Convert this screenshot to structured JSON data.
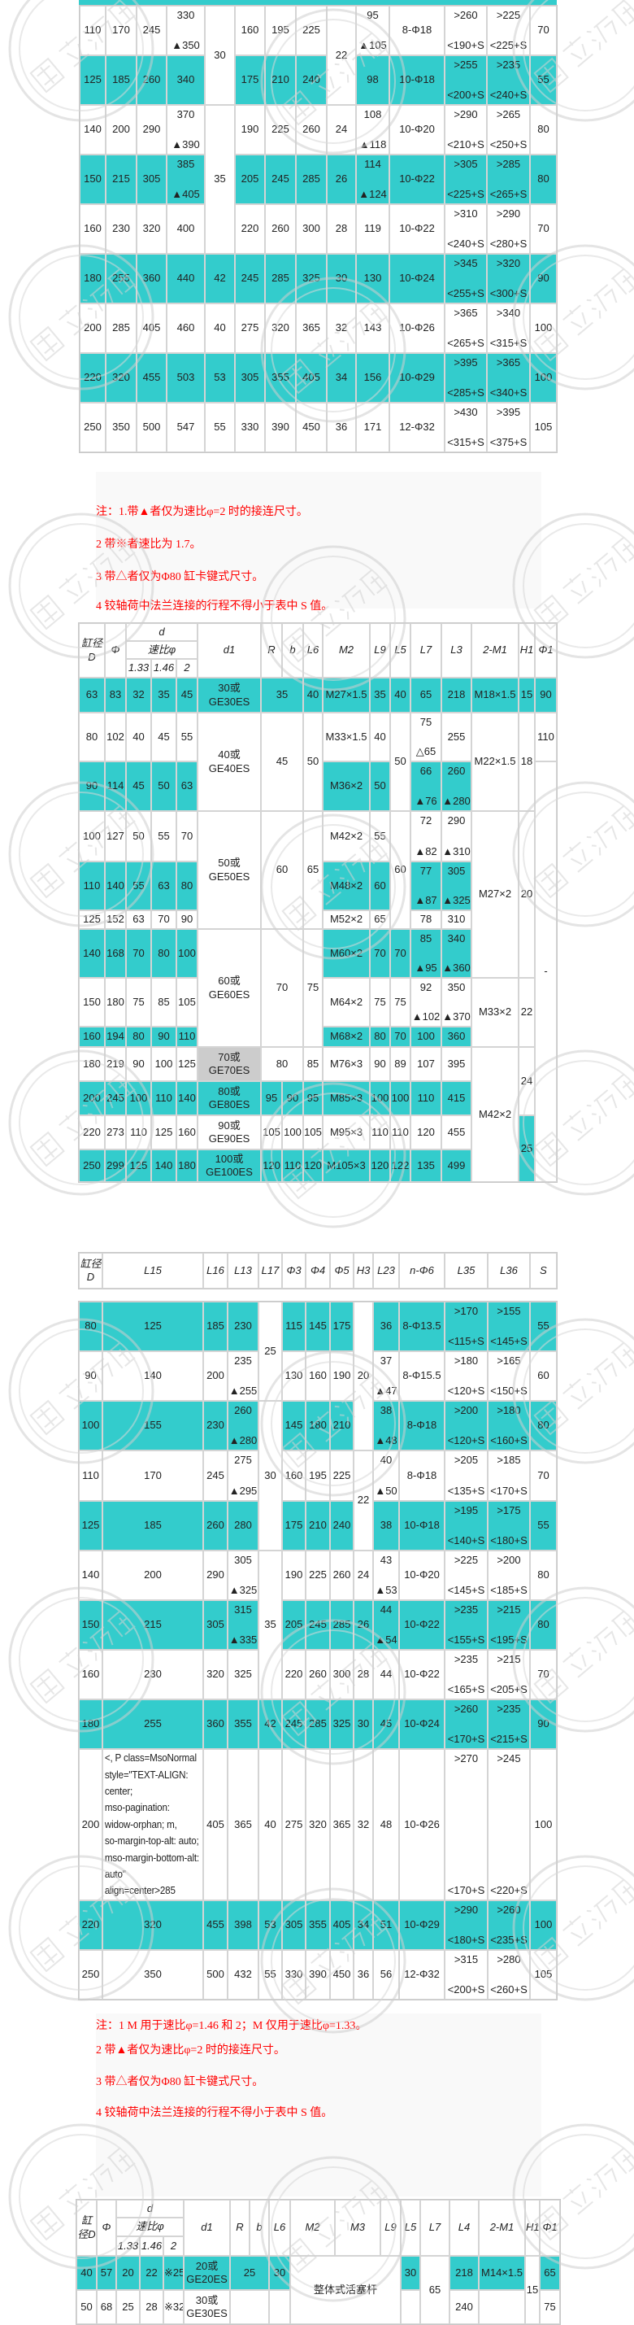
{
  "watermark": "国立液压",
  "colors": {
    "highlight": "#33cccc",
    "note_text": "#ff0000",
    "gray_cell": "#cccccc"
  },
  "t1": {
    "rows": [
      {
        "hl": false,
        "c": [
          "110",
          "170",
          "245",
          [
            "330",
            "▲350"
          ],
          {
            "t": "30",
            "rs": 2
          },
          "160",
          "195",
          "225",
          {
            "t": "22",
            "rs": 2
          },
          [
            "95",
            "▲105"
          ],
          "8-Φ18",
          [
            ">260",
            "<190+S"
          ],
          [
            ">225",
            "<225+S"
          ],
          "70"
        ]
      },
      {
        "hl": true,
        "c": [
          "125",
          "185",
          "260",
          "340",
          "175",
          "210",
          "240",
          "98",
          "10-Φ18",
          [
            ">255",
            "<200+S"
          ],
          [
            ">235",
            "<240+S"
          ],
          "55"
        ]
      },
      {
        "hl": false,
        "c": [
          "140",
          "200",
          "290",
          [
            "370",
            "▲390"
          ],
          {
            "t": "35",
            "rs": 3
          },
          "190",
          "225",
          "260",
          "24",
          [
            "108",
            "▲118"
          ],
          "10-Φ20",
          [
            ">290",
            "<210+S"
          ],
          [
            ">265",
            "<250+S"
          ],
          "80"
        ]
      },
      {
        "hl": true,
        "c": [
          "150",
          "215",
          "305",
          [
            "385",
            "▲405"
          ],
          "205",
          "245",
          "285",
          "26",
          [
            "114",
            "▲124"
          ],
          "10-Φ22",
          [
            ">305",
            "<225+S"
          ],
          [
            ">285",
            "<265+S"
          ],
          "80"
        ]
      },
      {
        "hl": false,
        "c": [
          "160",
          "230",
          "320",
          "400",
          "220",
          "260",
          "300",
          "28",
          "119",
          "10-Φ22",
          [
            ">310",
            "<240+S"
          ],
          [
            ">290",
            "<280+S"
          ],
          "70"
        ]
      },
      {
        "hl": true,
        "c": [
          "180",
          "255",
          "360",
          "440",
          "42",
          "245",
          "285",
          "325",
          "30",
          "130",
          "10-Φ24",
          [
            ">345",
            "<255+S"
          ],
          [
            ">320",
            "<300+S"
          ],
          "90"
        ]
      },
      {
        "hl": false,
        "c": [
          "200",
          "285",
          "405",
          "460",
          "40",
          "275",
          "320",
          "365",
          "32",
          "143",
          "10-Φ26",
          [
            ">365",
            "<265+S"
          ],
          [
            ">340",
            "<315+S"
          ],
          "100"
        ]
      },
      {
        "hl": true,
        "c": [
          "220",
          "320",
          "455",
          "503",
          "53",
          "305",
          "355",
          "405",
          "34",
          "156",
          "10-Φ29",
          [
            ">395",
            "<285+S"
          ],
          [
            ">365",
            "<340+S"
          ],
          "100"
        ]
      },
      {
        "hl": false,
        "c": [
          "250",
          "350",
          "500",
          "547",
          "55",
          "330",
          "390",
          "450",
          "36",
          "171",
          "12-Φ32",
          [
            ">430",
            "<315+S"
          ],
          [
            ">395",
            "<375+S"
          ],
          "105"
        ]
      }
    ]
  },
  "notes1": [
    "注：1.带▲者仅为速比φ=2 时的接连尺寸。",
    "2  带※者速比为 1.7。",
    "3  带△者仅为Φ80 缸卡键式尺寸。",
    "4  铰轴荷中法兰连接的行程不得小于表中 S 值。"
  ],
  "t2": {
    "head": [
      {
        "c": [
          {
            "t": "缸径\nD",
            "rs": 3
          },
          {
            "t": "Φ",
            "rs": 3
          },
          {
            "t": "d",
            "cs": 3
          },
          {
            "t": "d1",
            "rs": 3
          },
          {
            "t": "R",
            "rs": 3
          },
          {
            "t": "b",
            "rs": 3
          },
          {
            "t": "L6",
            "rs": 3
          },
          {
            "t": "M2",
            "rs": 3
          },
          {
            "t": "L9",
            "rs": 3
          },
          {
            "t": "L5",
            "rs": 3
          },
          {
            "t": "L7",
            "rs": 3
          },
          {
            "t": "L3",
            "rs": 3
          },
          {
            "t": "2-M1",
            "rs": 3
          },
          {
            "t": "H1",
            "rs": 3
          },
          {
            "t": "Φ1",
            "rs": 3
          }
        ]
      },
      {
        "c": [
          {
            "t": "速比φ",
            "cs": 3
          }
        ]
      },
      {
        "c": [
          "1.33",
          "1.46",
          "2"
        ]
      }
    ],
    "rows": [
      {
        "hl": true,
        "c": [
          "63",
          "83",
          "32",
          "35",
          "45",
          "30或\nGE30ES",
          {
            "t": "35",
            "cs": 2
          },
          "40",
          "M27×1.5",
          "35",
          "40",
          "65",
          "218",
          "M18×1.5",
          "15",
          "90"
        ]
      },
      {
        "hl": false,
        "c": [
          "80",
          "102",
          "40",
          "45",
          "55",
          {
            "t": "40或\nGE40ES",
            "rs": 2
          },
          {
            "t": "45",
            "cs": 2,
            "rs": 2
          },
          {
            "t": "50",
            "rs": 2
          },
          "M33×1.5",
          "40",
          {
            "t": "50",
            "rs": 2
          },
          [
            "75",
            "△65"
          ],
          "255",
          {
            "t": "M22×1.5",
            "rs": 2
          },
          {
            "t": "18",
            "rs": 2
          },
          "110"
        ]
      },
      {
        "hl": true,
        "c": [
          "90",
          "114",
          "45",
          "50",
          "63",
          "M36×2",
          "50",
          [
            "66",
            "▲76"
          ],
          [
            "260",
            "▲280"
          ],
          {
            "t": "-",
            "rs": 11
          }
        ]
      },
      {
        "hl": false,
        "c": [
          "100",
          "127",
          "50",
          "55",
          "70",
          {
            "t": "50或\nGE50ES",
            "rs": 3
          },
          {
            "t": "60",
            "cs": 2,
            "rs": 3
          },
          {
            "t": "65",
            "rs": 3
          },
          "M42×2",
          "55",
          {
            "t": "60",
            "rs": 3
          },
          [
            "72",
            "▲82"
          ],
          [
            "290",
            "▲310"
          ],
          {
            "t": "M27×2",
            "rs": 4
          },
          {
            "t": "20",
            "rs": 4
          }
        ]
      },
      {
        "hl": true,
        "c": [
          "110",
          "140",
          "55",
          "63",
          "80",
          "M48×2",
          "60",
          [
            "77",
            "▲87"
          ],
          [
            "305",
            "▲325"
          ]
        ]
      },
      {
        "hl": false,
        "c": [
          "125",
          "152",
          "63",
          "70",
          "90",
          "M52×2",
          "65",
          "78",
          "310"
        ]
      },
      {
        "hl": true,
        "c": [
          "140",
          "168",
          "70",
          "80",
          "100",
          {
            "t": "60或\nGE60ES",
            "rs": 3
          },
          {
            "t": "70",
            "cs": 2,
            "rs": 3
          },
          {
            "t": "75",
            "rs": 3
          },
          "M60×2",
          "70",
          "70",
          [
            "85",
            "▲95"
          ],
          [
            "340",
            "▲360"
          ]
        ]
      },
      {
        "hl": false,
        "c": [
          "150",
          "180",
          "75",
          "85",
          "105",
          "M64×2",
          "75",
          "75",
          [
            "92",
            "▲102"
          ],
          [
            "350",
            "▲370"
          ],
          {
            "t": "M33×2",
            "rs": 2
          },
          {
            "t": "22",
            "rs": 2
          }
        ]
      },
      {
        "hl": true,
        "c": [
          "160",
          "194",
          "80",
          "90",
          "110",
          "M68×2",
          "80",
          "70",
          "100",
          "360"
        ]
      },
      {
        "hl": false,
        "c": [
          "180",
          "219",
          "90",
          "100",
          "125",
          {
            "t": "70或\nGE70ES",
            "bg": "#cccccc"
          },
          {
            "t": "80",
            "cs": 2
          },
          "85",
          "M76×3",
          "90",
          "89",
          "107",
          "395",
          {
            "t": "M42×2",
            "rs": 4
          },
          {
            "t": "24",
            "rs": 2
          }
        ]
      },
      {
        "hl": true,
        "c": [
          "200",
          "245",
          "100",
          "110",
          "140",
          "80或\nGE80ES",
          "95",
          "90",
          "95",
          "M85×3",
          "100",
          "100",
          "110",
          "415"
        ]
      },
      {
        "hl": false,
        "c": [
          "220",
          "273",
          "110",
          "125",
          "160",
          "90或\nGE90ES",
          "105",
          "100",
          "105",
          "M95×3",
          "110",
          "110",
          "120",
          "455",
          {
            "t": "25",
            "rs": 2,
            "hl": true
          }
        ]
      },
      {
        "hl": true,
        "c": [
          "250",
          "299",
          "125",
          "140",
          "180",
          "100或\nGE100ES",
          "120",
          "110",
          "120",
          "M105×3",
          "120",
          "122",
          "135",
          "499"
        ]
      }
    ]
  },
  "t3head": {
    "head": [
      {
        "c": [
          "缸径\nD",
          "L15",
          "L16",
          "L13",
          "L17",
          "Φ3",
          "Φ4",
          "Φ5",
          "H3",
          "L23",
          "n-Φ6",
          "L35",
          "L36",
          "S"
        ]
      }
    ]
  },
  "t3": {
    "rows": [
      {
        "hl": true,
        "c": [
          "80",
          "125",
          "185",
          "230",
          {
            "t": "25",
            "rs": 2
          },
          "115",
          "145",
          "175",
          {
            "t": "20",
            "rs": 3
          },
          "36",
          "8-Φ13.5",
          [
            ">170",
            "<115+S"
          ],
          [
            ">155",
            "<145+S"
          ],
          "55"
        ]
      },
      {
        "hl": false,
        "c": [
          "90",
          "140",
          "200",
          [
            "235",
            "▲255"
          ],
          "130",
          "160",
          "190",
          [
            "37",
            "▲47"
          ],
          "8-Φ15.5",
          [
            ">180",
            "<120+S"
          ],
          [
            ">165",
            "<150+S"
          ],
          "60"
        ]
      },
      {
        "hl": true,
        "c": [
          "100",
          "155",
          "230",
          [
            "260",
            "▲280"
          ],
          {
            "t": "30",
            "rs": 3
          },
          "145",
          "180",
          "210",
          [
            "38",
            "▲48"
          ],
          "8-Φ18",
          [
            ">200",
            "<120+S"
          ],
          [
            ">180",
            "<160+S"
          ],
          "80"
        ]
      },
      {
        "hl": false,
        "c": [
          "110",
          "170",
          "245",
          [
            "275",
            "▲295"
          ],
          "160",
          "195",
          "225",
          {
            "t": "22",
            "rs": 2
          },
          [
            "40",
            "▲50"
          ],
          "8-Φ18",
          [
            ">205",
            "<135+S"
          ],
          [
            ">185",
            "<170+S"
          ],
          "70"
        ]
      },
      {
        "hl": true,
        "c": [
          "125",
          "185",
          "260",
          "280",
          "175",
          "210",
          "240",
          "38",
          "10-Φ18",
          [
            ">195",
            "<140+S"
          ],
          [
            ">175",
            "<180+S"
          ],
          "55"
        ]
      },
      {
        "hl": false,
        "c": [
          "140",
          "200",
          "290",
          [
            "305",
            "▲325"
          ],
          {
            "t": "35",
            "rs": 3
          },
          "190",
          "225",
          "260",
          "24",
          [
            "43",
            "▲53"
          ],
          "10-Φ20",
          [
            ">225",
            "<145+S"
          ],
          [
            ">200",
            "<185+S"
          ],
          "80"
        ]
      },
      {
        "hl": true,
        "c": [
          "150",
          "215",
          "305",
          [
            "315",
            "▲335"
          ],
          "205",
          "245",
          "285",
          "26",
          [
            "44",
            "▲54"
          ],
          "10-Φ22",
          [
            ">235",
            "<155+S"
          ],
          [
            ">215",
            "<195+S"
          ],
          "80"
        ]
      },
      {
        "hl": false,
        "c": [
          "160",
          "230",
          "320",
          "325",
          "220",
          "260",
          "300",
          "28",
          "44",
          "10-Φ22",
          [
            ">235",
            "<165+S"
          ],
          [
            ">215",
            "<205+S"
          ],
          "70"
        ]
      },
      {
        "hl": true,
        "c": [
          "180",
          "255",
          "360",
          "355",
          "42",
          "245",
          "285",
          "325",
          "30",
          "45",
          "10-Φ24",
          [
            ">260",
            "<170+S"
          ],
          [
            ">235",
            "<215+S"
          ],
          "90"
        ]
      },
      {
        "hl": false,
        "c": [
          "200",
          {
            "t": "<, P class=MsoNormal\nstyle=\"TEXT-ALIGN:\ncenter;\nmso-pagination:\nwidow-orphan; m,\nso-margin-top-alt: auto;\nmso-margin-bottom-alt:\nauto\"\nalign=center>285",
            "long": true
          },
          "405",
          "365",
          "40",
          "275",
          "320",
          "365",
          "32",
          "48",
          "10-Φ26",
          [
            ">270",
            "<170+S"
          ],
          [
            ">245",
            "<220+S"
          ],
          "100"
        ]
      },
      {
        "hl": true,
        "c": [
          "220",
          "320",
          "455",
          "398",
          "53",
          "305",
          "355",
          "405",
          "34",
          "51",
          "10-Φ29",
          [
            ">290",
            "<180+S"
          ],
          [
            ">260",
            "<235+S"
          ],
          "100"
        ]
      },
      {
        "hl": false,
        "c": [
          "250",
          "350",
          "500",
          "432",
          "55",
          "330",
          "390",
          "450",
          "36",
          "56",
          "12-Φ32",
          [
            ">315",
            "<200+S"
          ],
          [
            ">280",
            "<260+S"
          ],
          "105"
        ]
      }
    ]
  },
  "notes2": [
    "注：1 M 用于速比φ=1.46 和 2；M 仅用于速比φ=1.33。",
    "2  带▲者仅为速比φ=2 时的接连尺寸。",
    "3  带△者仅为Φ80 缸卡键式尺寸。",
    "4  铰轴荷中法兰连接的行程不得小于表中 S 值。"
  ],
  "t4": {
    "head": [
      {
        "c": [
          {
            "t": "缸\n径D",
            "rs": 3
          },
          {
            "t": "Φ",
            "rs": 3
          },
          {
            "t": "d",
            "cs": 3
          },
          {
            "t": "d1",
            "rs": 3
          },
          {
            "t": "R",
            "rs": 3
          },
          {
            "t": "b",
            "rs": 3
          },
          {
            "t": "L6",
            "rs": 3
          },
          {
            "t": "M2",
            "rs": 3
          },
          {
            "t": "M3",
            "rs": 3
          },
          {
            "t": "L9",
            "rs": 3
          },
          {
            "t": "L5",
            "rs": 3
          },
          {
            "t": "L7",
            "rs": 3
          },
          {
            "t": "L4",
            "rs": 3
          },
          {
            "t": "2-M1",
            "rs": 3
          },
          {
            "t": "H1",
            "rs": 3
          },
          {
            "t": "Φ1",
            "rs": 3
          }
        ]
      },
      {
        "c": [
          {
            "t": "速比φ",
            "cs": 3
          }
        ]
      },
      {
        "c": [
          "1.33",
          "1.46",
          "2"
        ]
      }
    ],
    "rows": [
      {
        "hl": true,
        "c": [
          "40",
          "57",
          "20",
          "22",
          "※25",
          "20或\nGE20ES",
          {
            "t": "25",
            "cs": 2
          },
          "30",
          {
            "t": "整体式活塞杆",
            "cs": 3,
            "rs": 2
          },
          "30",
          {
            "t": "65",
            "rs": 2
          },
          "218",
          "M14×1.5",
          {
            "t": "15",
            "rs": 2
          },
          "65"
        ]
      },
      {
        "hl": false,
        "c": [
          "50",
          "68",
          "25",
          "28",
          "※32",
          "30或\nGE30ES",
          {
            "t": "",
            "cs": 2
          },
          "",
          "",
          "240",
          "",
          "75"
        ]
      }
    ]
  }
}
